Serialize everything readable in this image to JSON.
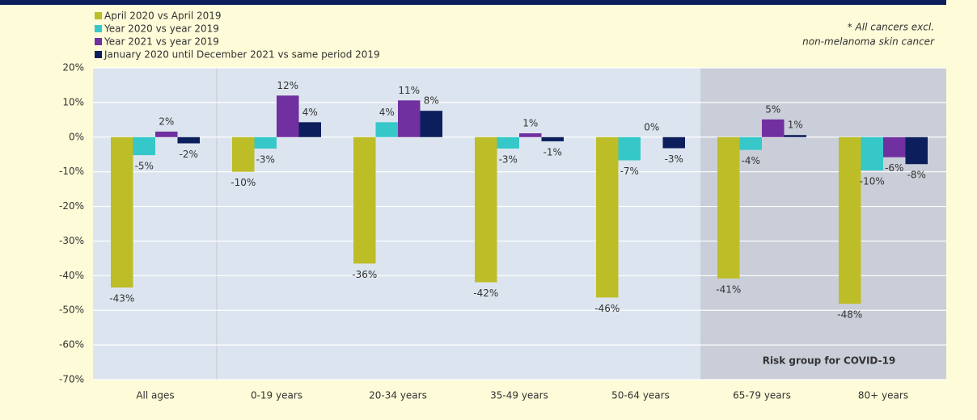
{
  "chart_data": {
    "type": "bar",
    "categories": [
      "All ages",
      "0-19 years",
      "20-34 years",
      "35-49 years",
      "50-64 years",
      "65-79 years",
      "80+ years"
    ],
    "series": [
      {
        "name": "April 2020 vs April 2019",
        "color": "#bdbd28",
        "values": [
          -43.4,
          -10,
          -36.5,
          -41.9,
          -46.3,
          -40.8,
          -48.1
        ],
        "value_labels": [
          "-43%",
          "-10%",
          "-36%",
          "-42%",
          "-46%",
          "-41%",
          "-48%"
        ]
      },
      {
        "name": "Year 2020 vs year 2019",
        "color": "#36c8c8",
        "values": [
          -5.2,
          -3.3,
          4.3,
          -3.3,
          -6.7,
          -3.7,
          -9.6
        ],
        "value_labels": [
          "-5%",
          "-3%",
          "4%",
          "-3%",
          "-7%",
          "-4%",
          "-10%"
        ]
      },
      {
        "name": "Year 2021 vs year 2019",
        "color": "#7030a0",
        "values": [
          1.6,
          12,
          10.6,
          1.1,
          0,
          5.1,
          -5.8
        ],
        "value_labels": [
          "2%",
          "12%",
          "11%",
          "1%",
          "0%",
          "5%",
          "-6%"
        ]
      },
      {
        "name": "January 2020 until December 2021 vs same period 2019",
        "color": "#0c1f5c",
        "values": [
          -1.8,
          4.3,
          7.6,
          -1.2,
          -3.2,
          0.6,
          -7.8
        ],
        "value_labels": [
          "-2%",
          "4%",
          "8%",
          "-1%",
          "-3%",
          "1%",
          "-8%"
        ]
      }
    ],
    "ylim": [
      -70,
      20
    ],
    "yticks": [
      {
        "value": 20,
        "label": "20%"
      },
      {
        "value": 10,
        "label": "10%"
      },
      {
        "value": 0,
        "label": "0%"
      },
      {
        "value": -10,
        "label": "-10%"
      },
      {
        "value": -20,
        "label": "-20%"
      },
      {
        "value": -30,
        "label": "-30%"
      },
      {
        "value": -40,
        "label": "-40%"
      },
      {
        "value": -50,
        "label": "-50%"
      },
      {
        "value": -60,
        "label": "-60%"
      },
      {
        "value": -70,
        "label": "-70%"
      }
    ],
    "grid": true,
    "annotations": [
      "* All cancers excl.",
      "non-melanoma skin cancer",
      "Risk group for COVID-19"
    ]
  }
}
